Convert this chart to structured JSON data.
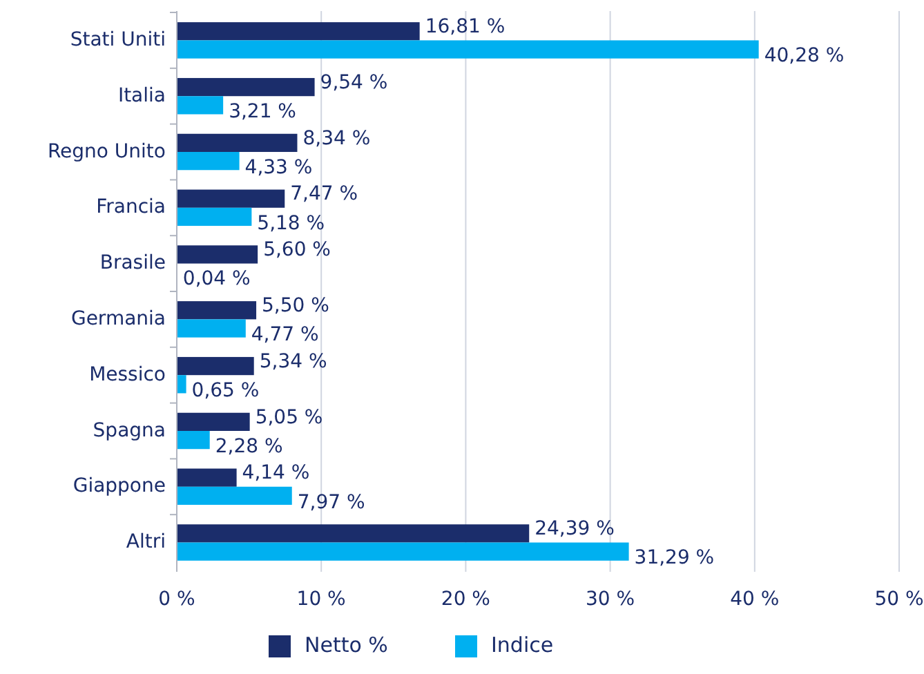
{
  "chart_data": {
    "type": "bar",
    "orientation": "horizontal",
    "categories": [
      "Stati Uniti",
      "Italia",
      "Regno Unito",
      "Francia",
      "Brasile",
      "Germania",
      "Messico",
      "Spagna",
      "Giappone",
      "Altri"
    ],
    "series": [
      {
        "name": "Netto %",
        "color": "#1b2d6b",
        "values": [
          16.81,
          9.54,
          8.34,
          7.47,
          5.6,
          5.5,
          5.34,
          5.05,
          4.14,
          24.39
        ],
        "value_labels": [
          "16,81 %",
          "9,54 %",
          "8,34 %",
          "7,47 %",
          "5,60 %",
          "5,50 %",
          "5,34 %",
          "5,05 %",
          "4,14 %",
          "24,39 %"
        ]
      },
      {
        "name": "Indice",
        "color": "#00b0f0",
        "values": [
          40.28,
          3.21,
          4.33,
          5.18,
          0.04,
          4.77,
          0.65,
          2.28,
          7.97,
          31.29
        ],
        "value_labels": [
          "40,28 %",
          "3,21 %",
          "4,33 %",
          "5,18 %",
          "0,04 %",
          "4,77 %",
          "0,65 %",
          "2,28 %",
          "7,97 %",
          "31,29 %"
        ]
      }
    ],
    "xlim": [
      0,
      50
    ],
    "xticks": [
      {
        "value": 0,
        "label": "0 %"
      },
      {
        "value": 10,
        "label": "10 %"
      },
      {
        "value": 20,
        "label": "20 %"
      },
      {
        "value": 30,
        "label": "30 %"
      },
      {
        "value": 40,
        "label": "40 %"
      },
      {
        "value": 50,
        "label": "50 %"
      }
    ],
    "grid": "x",
    "legend": "bottom"
  }
}
